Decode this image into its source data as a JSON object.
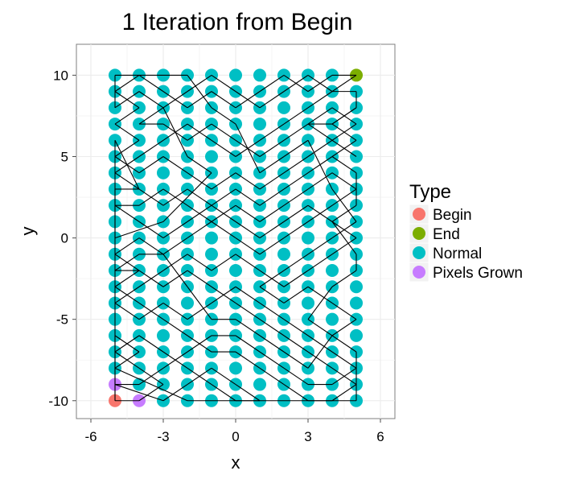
{
  "chart_data": {
    "type": "scatter",
    "title": "1 Iteration from Begin",
    "xlabel": "x",
    "ylabel": "y",
    "xlim": [
      -6.6,
      6.6
    ],
    "ylim": [
      -11.1,
      11.9
    ],
    "x_ticks": [
      -6,
      -3,
      0,
      3,
      6
    ],
    "y_ticks": [
      -10,
      -5,
      0,
      5,
      10
    ],
    "x_tick_labels": [
      "-6",
      "-3",
      "0",
      "3",
      "6"
    ],
    "y_tick_labels": [
      "-10",
      "-5",
      "0",
      "5",
      "10"
    ],
    "grid": true,
    "legend": {
      "title": "Type",
      "placement": "right",
      "entries": [
        {
          "label": "Begin",
          "color": "#F8766D"
        },
        {
          "label": "End",
          "color": "#7CAE00"
        },
        {
          "label": "Normal",
          "color": "#00BFC4"
        },
        {
          "label": "Pixels Grown",
          "color": "#C77CFF"
        }
      ]
    },
    "points": {
      "x_range": [
        -5,
        5
      ],
      "y_range": [
        -10,
        10
      ],
      "default_type": "Normal",
      "special": [
        {
          "x": -5,
          "y": -10,
          "type": "Begin"
        },
        {
          "x": 5,
          "y": 10,
          "type": "End"
        },
        {
          "x": -5,
          "y": -9,
          "type": "Pixels Grown"
        },
        {
          "x": -4,
          "y": -10,
          "type": "Pixels Grown"
        }
      ]
    },
    "path_segments": [
      [
        -5,
        -10,
        -4,
        -10
      ],
      [
        -4,
        -10,
        -3,
        -9
      ],
      [
        -3,
        -9,
        -4,
        -8
      ],
      [
        -4,
        -8,
        -5,
        -7
      ],
      [
        -5,
        -7,
        -4,
        -6
      ],
      [
        -4,
        -6,
        -3,
        -7
      ],
      [
        -3,
        -7,
        -2,
        -8
      ],
      [
        -2,
        -8,
        -1,
        -9
      ],
      [
        -1,
        -9,
        0,
        -10
      ],
      [
        0,
        -10,
        1,
        -10
      ],
      [
        1,
        -10,
        0,
        -9
      ],
      [
        0,
        -9,
        -1,
        -8
      ],
      [
        -1,
        -8,
        -2,
        -9
      ],
      [
        -2,
        -9,
        -3,
        -10
      ],
      [
        -3,
        -10,
        -5,
        -9
      ],
      [
        -5,
        -9,
        -4,
        -9
      ],
      [
        -4,
        -9,
        -3,
        -8
      ],
      [
        -3,
        -8,
        -2,
        -7
      ],
      [
        -2,
        -7,
        -1,
        -6
      ],
      [
        -1,
        -6,
        0,
        -6
      ],
      [
        0,
        -6,
        1,
        -7
      ],
      [
        1,
        -7,
        2,
        -8
      ],
      [
        2,
        -8,
        3,
        -9
      ],
      [
        3,
        -9,
        4,
        -9
      ],
      [
        4,
        -9,
        5,
        -8
      ],
      [
        5,
        -8,
        4,
        -7
      ],
      [
        4,
        -7,
        3,
        -6
      ],
      [
        3,
        -6,
        2,
        -5
      ],
      [
        2,
        -5,
        1,
        -4
      ],
      [
        1,
        -4,
        0,
        -3
      ],
      [
        0,
        -3,
        -1,
        -4
      ],
      [
        -1,
        -4,
        -2,
        -5
      ],
      [
        -2,
        -5,
        -3,
        -4
      ],
      [
        -3,
        -4,
        -4,
        -5
      ],
      [
        -4,
        -5,
        -5,
        -4
      ],
      [
        -5,
        -4,
        -4,
        -3
      ],
      [
        -4,
        -3,
        -3,
        -2
      ],
      [
        -3,
        -2,
        -2,
        -1
      ],
      [
        -2,
        -1,
        -1,
        -2
      ],
      [
        -1,
        -2,
        0,
        -1
      ],
      [
        0,
        -1,
        1,
        -2
      ],
      [
        1,
        -2,
        2,
        -3
      ],
      [
        2,
        -3,
        3,
        -2
      ],
      [
        3,
        -2,
        4,
        -1
      ],
      [
        4,
        -1,
        5,
        0
      ],
      [
        5,
        0,
        4,
        1
      ],
      [
        4,
        1,
        3,
        2
      ],
      [
        3,
        2,
        2,
        1
      ],
      [
        2,
        1,
        1,
        0
      ],
      [
        1,
        0,
        0,
        1
      ],
      [
        0,
        1,
        -1,
        2
      ],
      [
        -1,
        2,
        -2,
        3
      ],
      [
        -2,
        3,
        -3,
        2
      ],
      [
        -3,
        2,
        -4,
        3
      ],
      [
        -4,
        3,
        -5,
        4
      ],
      [
        -5,
        4,
        -4,
        5
      ],
      [
        -4,
        5,
        -3,
        6
      ],
      [
        -3,
        6,
        -2,
        7
      ],
      [
        -2,
        7,
        -1,
        6
      ],
      [
        -1,
        6,
        0,
        5
      ],
      [
        0,
        5,
        1,
        6
      ],
      [
        1,
        6,
        2,
        7
      ],
      [
        2,
        7,
        3,
        8
      ],
      [
        3,
        8,
        4,
        9
      ],
      [
        4,
        9,
        5,
        10
      ],
      [
        5,
        10,
        4,
        10
      ],
      [
        4,
        10,
        3,
        9
      ],
      [
        3,
        9,
        2,
        10
      ],
      [
        2,
        10,
        1,
        9
      ],
      [
        1,
        9,
        0,
        8
      ],
      [
        0,
        8,
        -1,
        9
      ],
      [
        -1,
        9,
        -2,
        8
      ],
      [
        -2,
        8,
        -3,
        9
      ],
      [
        -3,
        9,
        -4,
        10
      ],
      [
        -4,
        10,
        -5,
        9
      ],
      [
        -5,
        9,
        -4,
        8
      ],
      [
        -4,
        8,
        -5,
        7
      ],
      [
        -5,
        7,
        -4,
        6
      ],
      [
        -4,
        6,
        -5,
        5
      ],
      [
        -5,
        5,
        -4,
        4
      ],
      [
        -4,
        4,
        -3,
        5
      ],
      [
        -3,
        5,
        -2,
        4
      ],
      [
        -2,
        4,
        -1,
        3
      ],
      [
        -1,
        3,
        0,
        4
      ],
      [
        0,
        4,
        1,
        3
      ],
      [
        1,
        3,
        2,
        4
      ],
      [
        2,
        4,
        3,
        5
      ],
      [
        3,
        5,
        4,
        6
      ],
      [
        4,
        6,
        5,
        7
      ],
      [
        5,
        7,
        4,
        8
      ],
      [
        4,
        8,
        3,
        7
      ],
      [
        3,
        7,
        2,
        6
      ],
      [
        2,
        6,
        1,
        5
      ],
      [
        1,
        5,
        0,
        6
      ],
      [
        0,
        6,
        -1,
        7
      ],
      [
        -1,
        7,
        -2,
        6
      ],
      [
        -2,
        6,
        -3,
        7
      ],
      [
        -3,
        7,
        -4,
        7
      ],
      [
        -4,
        7,
        -3,
        8
      ],
      [
        -3,
        8,
        -2,
        9
      ],
      [
        -2,
        9,
        -1,
        10
      ],
      [
        -1,
        10,
        0,
        9
      ],
      [
        0,
        9,
        1,
        8
      ],
      [
        1,
        8,
        2,
        9
      ],
      [
        2,
        9,
        3,
        10
      ],
      [
        3,
        10,
        4,
        9
      ],
      [
        4,
        9,
        5,
        9
      ],
      [
        5,
        9,
        5,
        8
      ],
      [
        5,
        8,
        4,
        7
      ],
      [
        4,
        7,
        5,
        6
      ],
      [
        5,
        6,
        4,
        5
      ],
      [
        4,
        5,
        3,
        4
      ],
      [
        3,
        4,
        2,
        3
      ],
      [
        2,
        3,
        1,
        2
      ],
      [
        1,
        2,
        0,
        3
      ],
      [
        0,
        3,
        -1,
        2
      ],
      [
        -1,
        2,
        -2,
        1
      ],
      [
        -2,
        1,
        -3,
        0
      ],
      [
        -3,
        0,
        -4,
        1
      ],
      [
        -4,
        1,
        -5,
        2
      ],
      [
        -5,
        2,
        -4,
        2
      ],
      [
        -4,
        2,
        -3,
        3
      ],
      [
        -3,
        3,
        -2,
        2
      ],
      [
        -2,
        2,
        -1,
        1
      ],
      [
        -1,
        1,
        0,
        0
      ],
      [
        0,
        0,
        1,
        -1
      ],
      [
        1,
        -1,
        2,
        0
      ],
      [
        2,
        0,
        3,
        1
      ],
      [
        3,
        1,
        4,
        2
      ],
      [
        4,
        2,
        5,
        3
      ],
      [
        5,
        3,
        4,
        4
      ],
      [
        4,
        4,
        3,
        3
      ],
      [
        3,
        3,
        2,
        2
      ],
      [
        2,
        2,
        1,
        1
      ],
      [
        1,
        1,
        0,
        2
      ],
      [
        0,
        2,
        -1,
        1
      ],
      [
        -1,
        1,
        -2,
        0
      ],
      [
        -2,
        0,
        -3,
        -1
      ],
      [
        -3,
        -1,
        -4,
        0
      ],
      [
        -4,
        0,
        -5,
        -1
      ],
      [
        -5,
        -1,
        -4,
        -2
      ],
      [
        -4,
        -2,
        -3,
        -3
      ],
      [
        -3,
        -3,
        -2,
        -2
      ],
      [
        -2,
        -2,
        -1,
        -3
      ],
      [
        -1,
        -3,
        0,
        -4
      ],
      [
        0,
        -4,
        1,
        -5
      ],
      [
        1,
        -5,
        2,
        -6
      ],
      [
        2,
        -6,
        3,
        -7
      ],
      [
        3,
        -7,
        4,
        -8
      ],
      [
        4,
        -8,
        5,
        -9
      ],
      [
        5,
        -9,
        4,
        -10
      ],
      [
        4,
        -10,
        3,
        -10
      ],
      [
        3,
        -10,
        2,
        -9
      ],
      [
        2,
        -9,
        1,
        -8
      ],
      [
        1,
        -8,
        0,
        -7
      ],
      [
        0,
        -7,
        -1,
        -7
      ],
      [
        -1,
        -7,
        -2,
        -6
      ],
      [
        -2,
        -6,
        -3,
        -5
      ],
      [
        -3,
        -5,
        -4,
        -4
      ],
      [
        -4,
        -4,
        -5,
        -3
      ],
      [
        -5,
        -3,
        -4,
        -2
      ],
      [
        -4,
        -2,
        -5,
        -2
      ],
      [
        -5,
        -2,
        -4,
        -1
      ],
      [
        -4,
        -1,
        -3,
        -1
      ],
      [
        -3,
        -1,
        -2,
        -3
      ],
      [
        -2,
        -3,
        -1,
        -5
      ],
      [
        -1,
        -5,
        0,
        -5
      ],
      [
        0,
        -5,
        1,
        -6
      ],
      [
        1,
        -6,
        2,
        -7
      ],
      [
        2,
        -7,
        3,
        -8
      ],
      [
        3,
        -8,
        4,
        -6
      ],
      [
        4,
        -6,
        5,
        -5
      ],
      [
        5,
        -5,
        4,
        -4
      ],
      [
        4,
        -4,
        3,
        -3
      ],
      [
        3,
        -3,
        2,
        -4
      ],
      [
        2,
        -4,
        1,
        -3
      ],
      [
        1,
        -3,
        2,
        -2
      ],
      [
        2,
        -2,
        3,
        -1
      ],
      [
        3,
        -1,
        4,
        0
      ],
      [
        4,
        0,
        5,
        1
      ],
      [
        5,
        1,
        4,
        3
      ],
      [
        4,
        3,
        3,
        6
      ],
      [
        3,
        6,
        2,
        5
      ],
      [
        2,
        5,
        1,
        4
      ],
      [
        1,
        4,
        0,
        7
      ],
      [
        0,
        7,
        -1,
        8
      ],
      [
        -1,
        8,
        -2,
        10
      ],
      [
        -2,
        10,
        -3,
        10
      ],
      [
        -3,
        10,
        -5,
        10
      ],
      [
        -5,
        10,
        -5,
        8
      ],
      [
        -5,
        8,
        -4,
        9
      ],
      [
        -4,
        9,
        -3,
        8
      ],
      [
        -3,
        8,
        -2,
        5
      ],
      [
        -2,
        5,
        -1,
        4
      ],
      [
        -1,
        4,
        -3,
        1
      ],
      [
        -3,
        1,
        -5,
        0
      ],
      [
        -5,
        0,
        -5,
        1
      ],
      [
        -5,
        1,
        -5,
        3
      ],
      [
        -5,
        3,
        -4,
        3
      ],
      [
        -4,
        3,
        -5,
        6
      ],
      [
        -5,
        6,
        -5,
        -10
      ],
      [
        -5,
        -10,
        -5,
        -6
      ],
      [
        -5,
        -6,
        -4,
        -7
      ],
      [
        -4,
        -7,
        -5,
        -8
      ],
      [
        -5,
        -8,
        -2,
        -10
      ],
      [
        -2,
        -10,
        -1,
        -10
      ],
      [
        -1,
        -10,
        2,
        -10
      ],
      [
        2,
        -10,
        5,
        -10
      ],
      [
        5,
        -10,
        5,
        -7
      ],
      [
        5,
        -7,
        3,
        -5
      ],
      [
        3,
        -5,
        4,
        -3
      ],
      [
        4,
        -3,
        5,
        -2
      ],
      [
        5,
        -2,
        5,
        -1
      ],
      [
        5,
        -1,
        4,
        1
      ],
      [
        4,
        1,
        5,
        2
      ],
      [
        5,
        2,
        5,
        4
      ],
      [
        5,
        4,
        4,
        5
      ],
      [
        5,
        5,
        3,
        7
      ],
      [
        3,
        7,
        4,
        7
      ],
      [
        4,
        7,
        5,
        8
      ]
    ]
  }
}
